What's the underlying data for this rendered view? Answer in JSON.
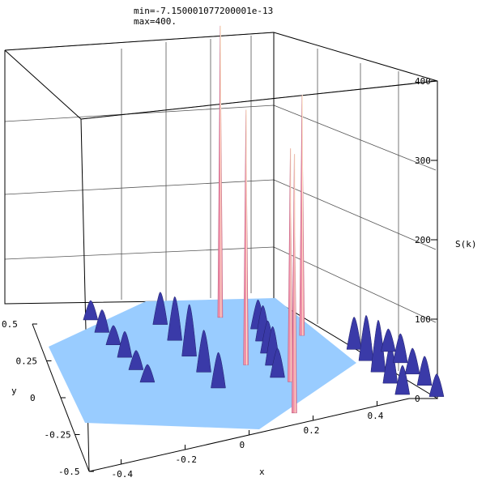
{
  "header": {
    "min_label": "min=-7.150001077200001e-13",
    "max_label": "max=400."
  },
  "chart_data": {
    "type": "surface3d",
    "title": "",
    "xlabel": "x",
    "ylabel": "y",
    "zlabel": "S(k)",
    "xlim": [
      -0.5,
      0.5
    ],
    "ylim": [
      -0.5,
      0.5
    ],
    "zlim": [
      0,
      400
    ],
    "x_ticks": [
      "-0.4",
      "-0.2",
      "0",
      "0.2",
      "0.4"
    ],
    "y_ticks": [
      "0.5",
      "0.25",
      "0",
      "-0.25",
      "-0.5"
    ],
    "z_ticks": [
      "0",
      "100",
      "200",
      "300",
      "400"
    ],
    "grid": true,
    "colors": {
      "floor": "#99ccff",
      "ridge": "#3a3aa8",
      "spike": "#f08fa8"
    },
    "peaks": [
      {
        "x": -0.083,
        "y": 0.36,
        "z": 400
      },
      {
        "x": -0.04,
        "y": 0.03,
        "z": 350
      },
      {
        "x": 0.147,
        "y": 0.31,
        "z": 330
      },
      {
        "x": 0.08,
        "y": -0.05,
        "z": 320
      },
      {
        "x": 0.07,
        "y": -0.28,
        "z": 355
      }
    ]
  }
}
